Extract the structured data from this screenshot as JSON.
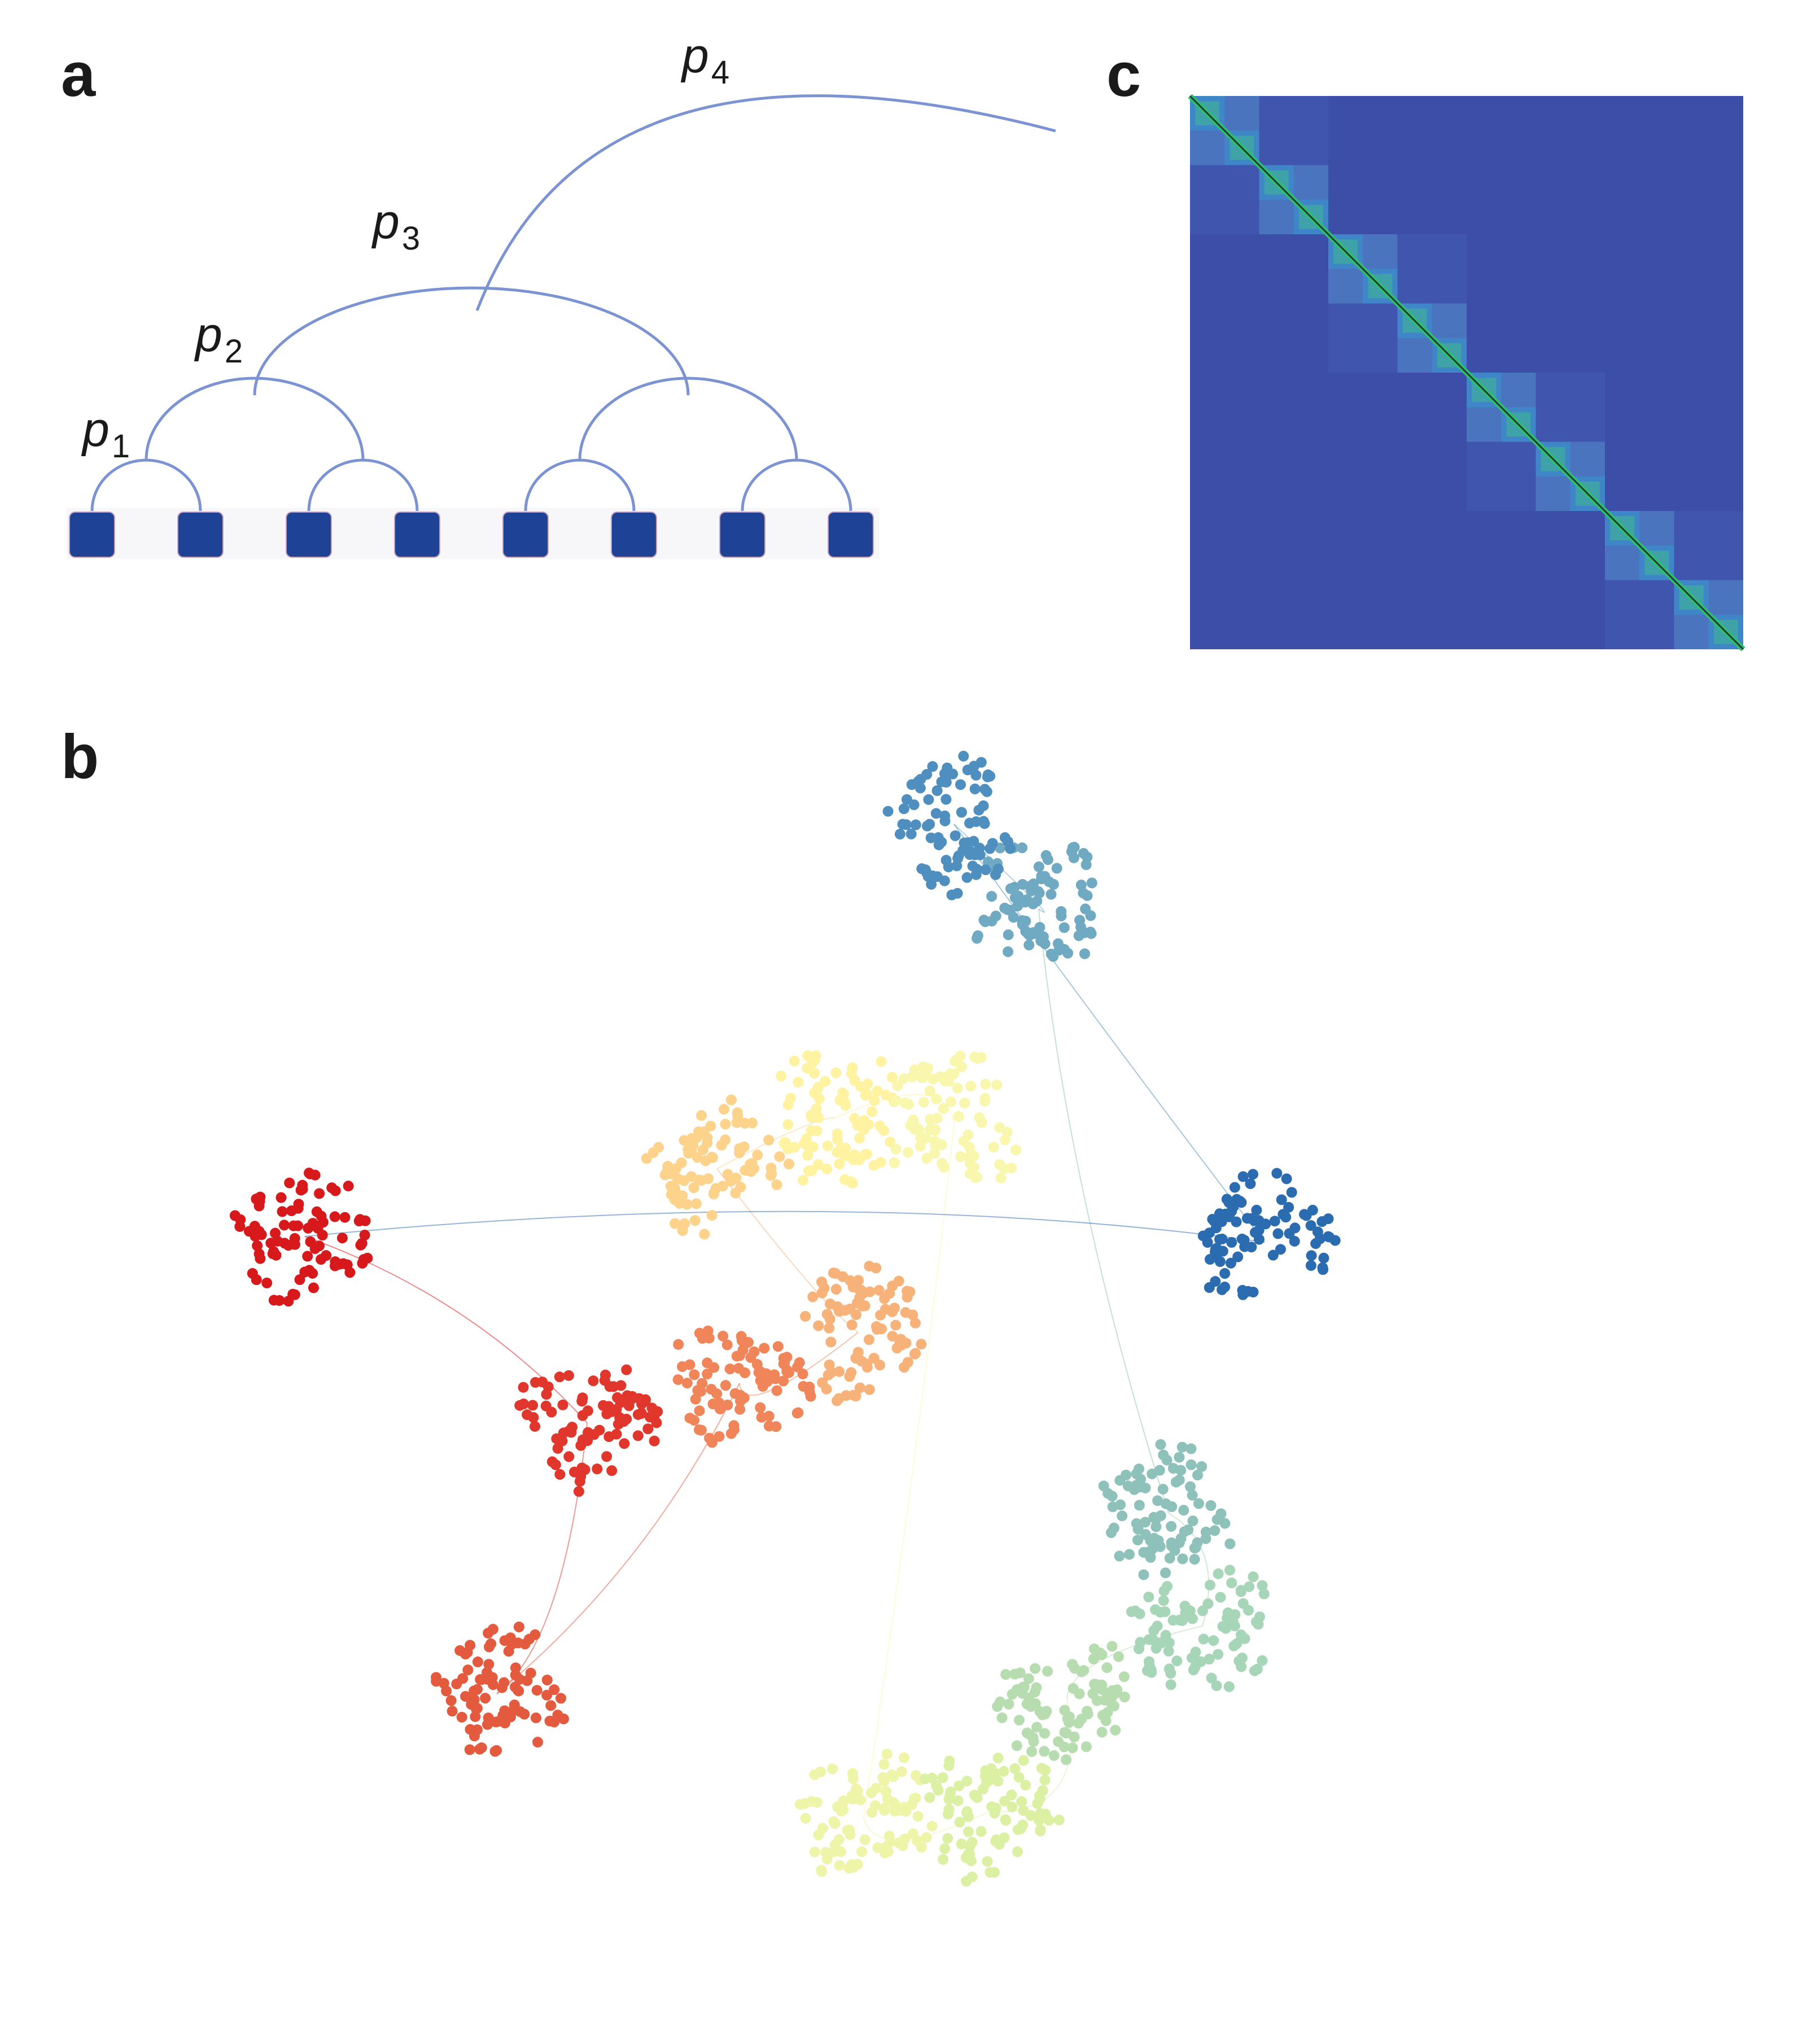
{
  "panels": {
    "a": "a",
    "b": "b",
    "c": "c"
  },
  "hierarchy": {
    "levels": [
      {
        "symbol": "p",
        "subscript": "1"
      },
      {
        "symbol": "p",
        "subscript": "2"
      },
      {
        "symbol": "p",
        "subscript": "3"
      },
      {
        "symbol": "p",
        "subscript": "4"
      }
    ],
    "node_count": 8,
    "arc_color": "#7b93d3",
    "node_color": "#1d4296"
  },
  "matrix": {
    "blocks": 16,
    "background_color": "#3c4ea8",
    "block_color": "#3f86c9",
    "pair_block_color": "#4a74bd",
    "diagonal_color": "#2fc06a"
  },
  "network": {
    "cluster_colors": [
      "#d7191c",
      "#e0362c",
      "#e45a3e",
      "#f0855a",
      "#f7b27a",
      "#fdd38c",
      "#fff2a0",
      "#f9f7ad",
      "#eef5a8",
      "#dcf0a4",
      "#b6dcb0",
      "#a7d5b8",
      "#8dc1ba",
      "#70a9c2",
      "#4e8fc0",
      "#2b6cb0"
    ]
  }
}
